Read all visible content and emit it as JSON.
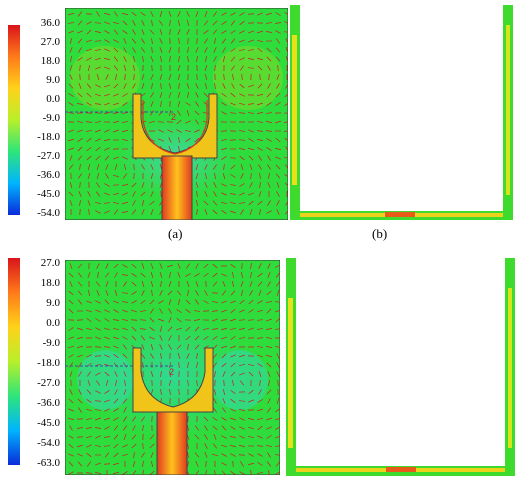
{
  "colors": {
    "panel_green": "#2edc3c",
    "colorbar": [
      "#0a2bd9",
      "#00b4ff",
      "#2ee57a",
      "#b8ef2b",
      "#ffd21a",
      "#ff7a1a",
      "#d9141b"
    ],
    "arrow": "#c81e2a",
    "hot": "#ffb81e",
    "cold": "#22e3c4"
  },
  "top": {
    "colorbar_ticks": [
      "36.0",
      "27.0",
      "18.0",
      "9.0",
      "0.0",
      "-9.0",
      "-18.0",
      "-27.0",
      "-36.0",
      "-45.0",
      "-54.0"
    ],
    "panel_a_marker": "2",
    "caption_a": "(a)",
    "caption_b": "(b)"
  },
  "bottom": {
    "colorbar_ticks": [
      "27.0",
      "18.0",
      "9.0",
      "0.0",
      "-9.0",
      "-18.0",
      "-27.0",
      "-36.0",
      "-45.0",
      "-54.0",
      "-63.0"
    ],
    "panel_marker": "2"
  }
}
